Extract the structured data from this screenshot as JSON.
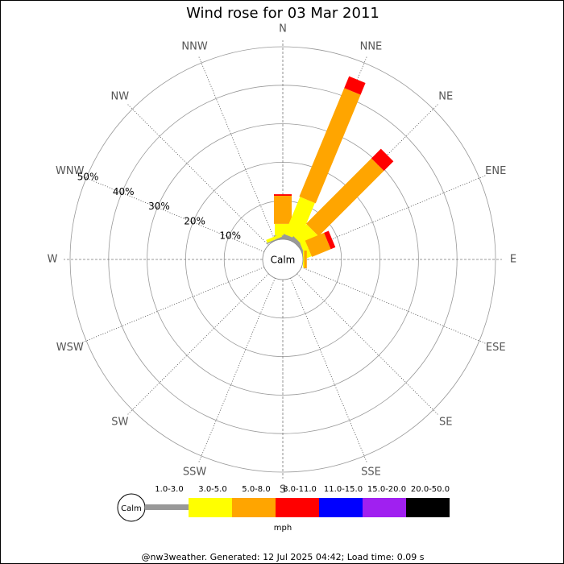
{
  "chart_data": {
    "type": "windrose",
    "title": "Wind rose for 03 Mar 2011",
    "directions": [
      "N",
      "NNE",
      "NE",
      "ENE",
      "E",
      "ESE",
      "SE",
      "SSE",
      "S",
      "SSW",
      "SW",
      "WSW",
      "W",
      "WNW",
      "NW",
      "NNW"
    ],
    "series": [
      {
        "name": "1.0-3.0",
        "color": "#999999",
        "values": [
          1,
          1,
          1,
          0.5,
          0,
          0,
          0,
          0,
          0,
          0,
          0,
          0,
          0,
          0,
          0,
          0.3
        ]
      },
      {
        "name": "3.0-5.0",
        "color": "#ffff00",
        "values": [
          3,
          10.5,
          4.6,
          1.5,
          0.3,
          0,
          0,
          0,
          0,
          0,
          0,
          0,
          0,
          0,
          0,
          0.8
        ]
      },
      {
        "name": "5.0-8.0",
        "color": "#ffa500",
        "values": [
          7.3,
          30.5,
          24,
          5.3,
          0.7,
          0,
          0,
          0,
          0,
          0,
          0,
          0,
          0,
          0,
          0,
          0
        ]
      },
      {
        "name": "8.0-11.0",
        "color": "#ff0000",
        "values": [
          0.4,
          3.3,
          3.5,
          1.3,
          0,
          0,
          0,
          0,
          0,
          0,
          0,
          0,
          0,
          0,
          0,
          0
        ]
      },
      {
        "name": "11.0-15.0",
        "color": "#0000ff",
        "values": [
          0,
          0,
          0,
          0,
          0,
          0,
          0,
          0,
          0,
          0,
          0,
          0,
          0,
          0,
          0,
          0
        ]
      },
      {
        "name": "15.0-20.0",
        "color": "#a020f0",
        "values": [
          0,
          0,
          0,
          0,
          0,
          0,
          0,
          0,
          0,
          0,
          0,
          0,
          0,
          0,
          0,
          0
        ]
      },
      {
        "name": "20.0-50.0",
        "color": "#000000",
        "values": [
          0,
          0,
          0,
          0,
          0,
          0,
          0,
          0,
          0,
          0,
          0,
          0,
          0,
          0,
          0,
          0
        ]
      }
    ],
    "ylim": [
      0,
      50
    ],
    "yticks": [
      {
        "value": 10,
        "label": "10%"
      },
      {
        "value": 20,
        "label": "20%"
      },
      {
        "value": 30,
        "label": "30%"
      },
      {
        "value": 40,
        "label": "40%"
      },
      {
        "value": 50,
        "label": "50%"
      }
    ],
    "calm_label": "Calm",
    "unit_label": "mph",
    "footer": "@nw3weather. Generated: 12 Jul 2025 04:42; Load time: 0.09 s"
  }
}
